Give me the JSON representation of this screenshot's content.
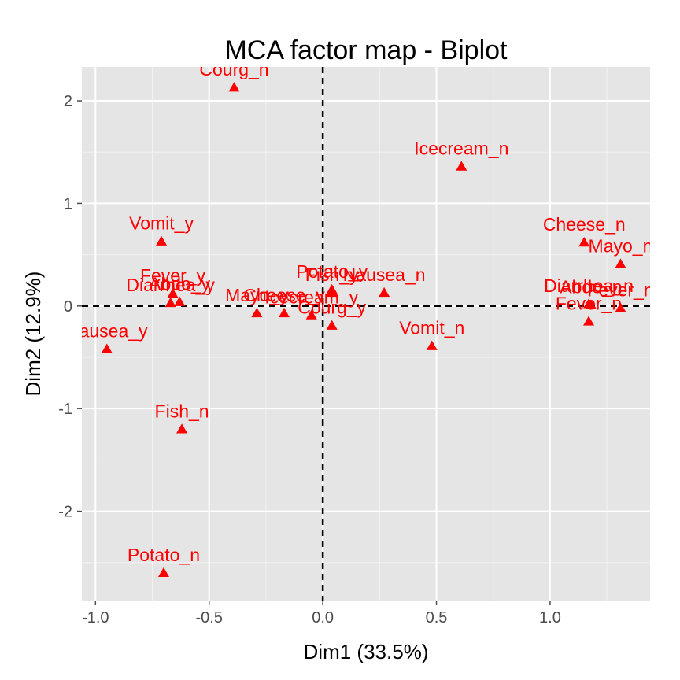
{
  "chart_data": {
    "type": "scatter",
    "title": "MCA factor map - Biplot",
    "xlabel": "Dim1 (33.5%)",
    "ylabel": "Dim2 (12.9%)",
    "xlim": [
      -1.06,
      1.44
    ],
    "ylim": [
      -2.87,
      2.33
    ],
    "x_ticks": [
      -1.0,
      -0.5,
      0.0,
      0.5,
      1.0
    ],
    "x_tick_labels": [
      "-1.0",
      "-0.5",
      "0.0",
      "0.5",
      "1.0"
    ],
    "y_ticks": [
      -2,
      -1,
      0,
      1,
      2
    ],
    "y_tick_labels": [
      "-2",
      "-1",
      "0",
      "1",
      "2"
    ],
    "grid": true,
    "reference_lines": {
      "x": 0,
      "y": 0,
      "style": "dashed"
    },
    "marker": "triangle",
    "color": "#ff0000",
    "points": [
      {
        "label": "Courg_n",
        "x": -0.39,
        "y": 2.13
      },
      {
        "label": "Icecream_n",
        "x": 0.61,
        "y": 1.36
      },
      {
        "label": "Vomit_y",
        "x": -0.71,
        "y": 0.63
      },
      {
        "label": "Cheese_n",
        "x": 1.15,
        "y": 0.62
      },
      {
        "label": "Mayo_n",
        "x": 1.31,
        "y": 0.41
      },
      {
        "label": "Fever_y",
        "x": -0.66,
        "y": 0.12
      },
      {
        "label": "Diarrhea_y",
        "x": -0.67,
        "y": 0.03
      },
      {
        "label": "Abdo_y",
        "x": -0.63,
        "y": 0.04
      },
      {
        "label": "Mayo_y",
        "x": -0.29,
        "y": -0.07
      },
      {
        "label": "Cheese_y",
        "x": -0.17,
        "y": -0.07
      },
      {
        "label": "Icecream_y",
        "x": -0.05,
        "y": -0.09
      },
      {
        "label": "Potato_y",
        "x": 0.04,
        "y": 0.16
      },
      {
        "label": "Fish_y",
        "x": 0.04,
        "y": 0.13
      },
      {
        "label": "Nausea_n",
        "x": 0.27,
        "y": 0.13
      },
      {
        "label": "Courg_y",
        "x": 0.04,
        "y": -0.19
      },
      {
        "label": "Vomit_n",
        "x": 0.48,
        "y": -0.39
      },
      {
        "label": "Diarrhea_n",
        "x": 1.17,
        "y": 0.02
      },
      {
        "label": "Abdo_n",
        "x": 1.18,
        "y": 0.01
      },
      {
        "label": "Fever_n",
        "x": 1.31,
        "y": -0.02
      },
      {
        "label": "Fever_n",
        "x": 1.17,
        "y": -0.15
      },
      {
        "label": "Nausea_y",
        "x": -0.95,
        "y": -0.42
      },
      {
        "label": "Fish_n",
        "x": -0.62,
        "y": -1.2
      },
      {
        "label": "Potato_n",
        "x": -0.7,
        "y": -2.6
      }
    ]
  }
}
